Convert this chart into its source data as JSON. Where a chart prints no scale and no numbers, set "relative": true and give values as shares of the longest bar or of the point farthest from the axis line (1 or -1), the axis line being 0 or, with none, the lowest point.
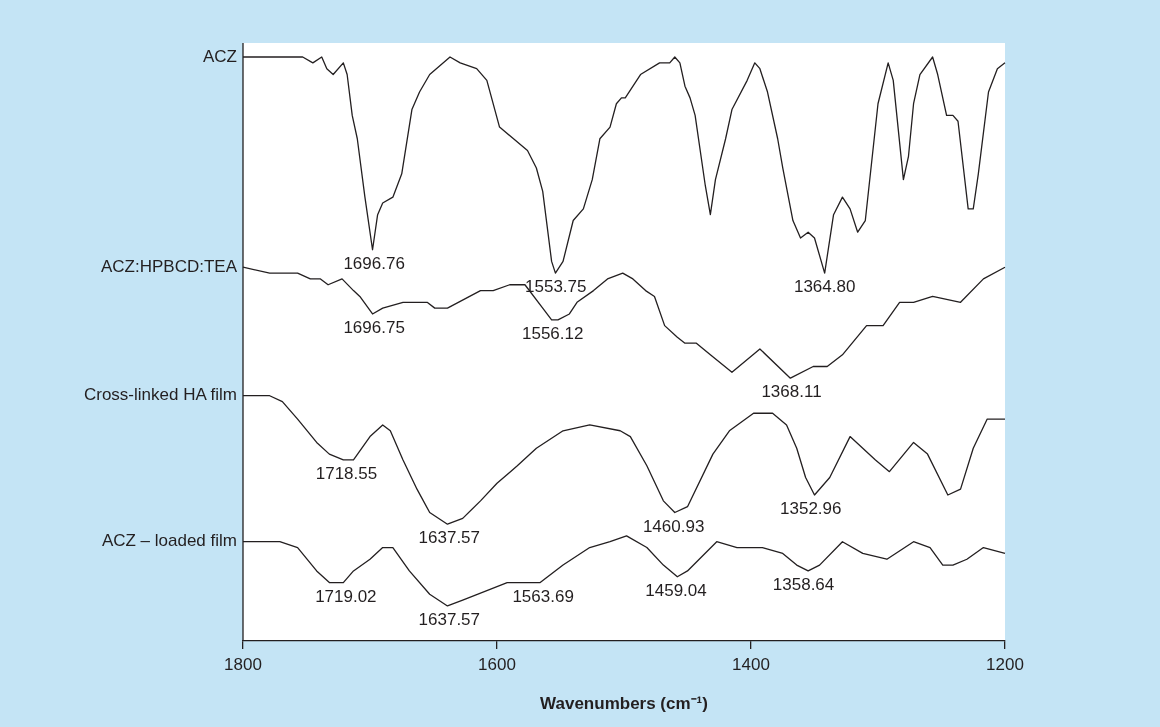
{
  "chart_data": {
    "type": "line",
    "relative": true,
    "xlabel": "Wavenumbers (cm⁻¹)",
    "xlim": [
      1800,
      1200
    ],
    "xticks": [
      1800,
      1600,
      1400,
      1200
    ],
    "legend": false,
    "marker": "none",
    "line_style": "solid",
    "series": [
      {
        "name": "ACZ",
        "color": "#231f20",
        "x": [
          1800,
          1779,
          1753,
          1745,
          1738,
          1734,
          1729,
          1721,
          1718,
          1714,
          1710,
          1704,
          1698,
          1694,
          1690,
          1682,
          1675,
          1667,
          1661,
          1653,
          1637,
          1629,
          1616,
          1608,
          1598,
          1587,
          1576,
          1569,
          1564,
          1557,
          1554,
          1548,
          1540,
          1532,
          1525,
          1519,
          1511,
          1506,
          1502,
          1499,
          1487,
          1472,
          1464,
          1460,
          1456,
          1452,
          1448,
          1444,
          1436,
          1432,
          1428,
          1420,
          1415,
          1403,
          1397,
          1393,
          1387,
          1379,
          1375,
          1367,
          1361,
          1355,
          1350,
          1342,
          1335,
          1328,
          1322,
          1316,
          1310,
          1300,
          1292,
          1288,
          1280,
          1276,
          1272,
          1267,
          1257,
          1253,
          1246,
          1241,
          1237,
          1229,
          1225,
          1221,
          1213,
          1206,
          1200
        ],
        "values": [
          1.0,
          1.0,
          1.0,
          0.99,
          1.0,
          0.98,
          0.97,
          0.99,
          0.97,
          0.9,
          0.86,
          0.76,
          0.67,
          0.73,
          0.75,
          0.76,
          0.8,
          0.91,
          0.94,
          0.97,
          1.0,
          0.99,
          0.98,
          0.96,
          0.88,
          0.86,
          0.84,
          0.81,
          0.77,
          0.65,
          0.63,
          0.65,
          0.72,
          0.74,
          0.79,
          0.86,
          0.88,
          0.92,
          0.93,
          0.93,
          0.97,
          0.99,
          0.99,
          1.0,
          0.99,
          0.95,
          0.93,
          0.9,
          0.78,
          0.73,
          0.79,
          0.86,
          0.91,
          0.96,
          0.99,
          0.98,
          0.94,
          0.86,
          0.81,
          0.72,
          0.69,
          0.7,
          0.69,
          0.63,
          0.73,
          0.76,
          0.74,
          0.7,
          0.72,
          0.92,
          0.99,
          0.96,
          0.79,
          0.83,
          0.92,
          0.97,
          1.0,
          0.97,
          0.9,
          0.9,
          0.89,
          0.74,
          0.74,
          0.8,
          0.94,
          0.98,
          0.99
        ]
      },
      {
        "name": "ACZ:HPBCD:TEA",
        "color": "#231f20",
        "x": [
          1800,
          1779,
          1757,
          1747,
          1739,
          1733,
          1722,
          1713,
          1708,
          1698,
          1690,
          1674,
          1655,
          1649,
          1639,
          1613,
          1603,
          1590,
          1578,
          1564,
          1557,
          1552,
          1543,
          1537,
          1524,
          1513,
          1501,
          1493,
          1483,
          1476,
          1468,
          1458,
          1452,
          1443,
          1432,
          1415,
          1393,
          1369,
          1351,
          1340,
          1328,
          1309,
          1296,
          1283,
          1272,
          1257,
          1235,
          1217,
          1200
        ],
        "values": [
          0.64,
          0.63,
          0.63,
          0.62,
          0.62,
          0.61,
          0.62,
          0.6,
          0.59,
          0.56,
          0.57,
          0.58,
          0.58,
          0.57,
          0.57,
          0.6,
          0.6,
          0.61,
          0.61,
          0.57,
          0.55,
          0.55,
          0.56,
          0.58,
          0.6,
          0.62,
          0.63,
          0.62,
          0.6,
          0.59,
          0.54,
          0.52,
          0.51,
          0.51,
          0.49,
          0.46,
          0.5,
          0.45,
          0.47,
          0.47,
          0.49,
          0.54,
          0.54,
          0.58,
          0.58,
          0.59,
          0.58,
          0.62,
          0.64
        ]
      },
      {
        "name": "Cross-linked HA film",
        "color": "#231f20",
        "x": [
          1800,
          1779,
          1769,
          1757,
          1742,
          1732,
          1721,
          1713,
          1700,
          1690,
          1684,
          1674,
          1663,
          1653,
          1639,
          1627,
          1613,
          1600,
          1584,
          1569,
          1548,
          1527,
          1503,
          1495,
          1482,
          1469,
          1460,
          1450,
          1430,
          1417,
          1398,
          1383,
          1372,
          1364,
          1357,
          1350,
          1338,
          1322,
          1312,
          1302,
          1291,
          1272,
          1261,
          1245,
          1235,
          1225,
          1214,
          1200
        ],
        "values": [
          0.42,
          0.42,
          0.41,
          0.38,
          0.34,
          0.32,
          0.31,
          0.31,
          0.35,
          0.37,
          0.36,
          0.31,
          0.26,
          0.22,
          0.2,
          0.21,
          0.24,
          0.27,
          0.3,
          0.33,
          0.36,
          0.37,
          0.36,
          0.35,
          0.3,
          0.24,
          0.22,
          0.23,
          0.32,
          0.36,
          0.39,
          0.39,
          0.37,
          0.33,
          0.28,
          0.25,
          0.28,
          0.35,
          0.33,
          0.31,
          0.29,
          0.34,
          0.32,
          0.25,
          0.26,
          0.33,
          0.38,
          0.38
        ]
      },
      {
        "name": "ACZ – loaded film",
        "color": "#231f20",
        "x": [
          1800,
          1779,
          1771,
          1757,
          1742,
          1732,
          1721,
          1713,
          1700,
          1690,
          1682,
          1669,
          1653,
          1639,
          1627,
          1592,
          1582,
          1566,
          1548,
          1527,
          1511,
          1498,
          1482,
          1469,
          1458,
          1450,
          1427,
          1411,
          1391,
          1375,
          1364,
          1355,
          1346,
          1328,
          1312,
          1293,
          1272,
          1259,
          1249,
          1241,
          1230,
          1217,
          1200
        ],
        "values": [
          0.17,
          0.17,
          0.17,
          0.16,
          0.12,
          0.1,
          0.1,
          0.12,
          0.14,
          0.16,
          0.16,
          0.12,
          0.08,
          0.06,
          0.07,
          0.1,
          0.1,
          0.1,
          0.13,
          0.16,
          0.17,
          0.18,
          0.16,
          0.13,
          0.11,
          0.12,
          0.17,
          0.16,
          0.16,
          0.15,
          0.13,
          0.12,
          0.13,
          0.17,
          0.15,
          0.14,
          0.17,
          0.16,
          0.13,
          0.13,
          0.14,
          0.16,
          0.15
        ]
      }
    ],
    "annotations": [
      {
        "text": "1696.76",
        "x": 1696.76,
        "y": 0.67
      },
      {
        "text": "1553.75",
        "x": 1553.75,
        "y": 0.63
      },
      {
        "text": "1364.80",
        "x": 1342,
        "y": 0.63
      },
      {
        "text": "1696.75",
        "x": 1696.75,
        "y": 0.56
      },
      {
        "text": "1556.12",
        "x": 1556.12,
        "y": 0.55
      },
      {
        "text": "1368.11",
        "x": 1368.11,
        "y": 0.45
      },
      {
        "text": "1718.55",
        "x": 1718.55,
        "y": 0.31
      },
      {
        "text": "1637.57",
        "x": 1637.57,
        "y": 0.2
      },
      {
        "text": "1460.93",
        "x": 1460.93,
        "y": 0.22
      },
      {
        "text": "1352.96",
        "x": 1352.96,
        "y": 0.25
      },
      {
        "text": "1719.02",
        "x": 1719.02,
        "y": 0.1
      },
      {
        "text": "1637.57",
        "x": 1637.57,
        "y": 0.06
      },
      {
        "text": "1563.69",
        "x": 1563.69,
        "y": 0.1
      },
      {
        "text": "1459.04",
        "x": 1459.04,
        "y": 0.11
      },
      {
        "text": "1358.64",
        "x": 1358.64,
        "y": 0.12
      }
    ]
  }
}
